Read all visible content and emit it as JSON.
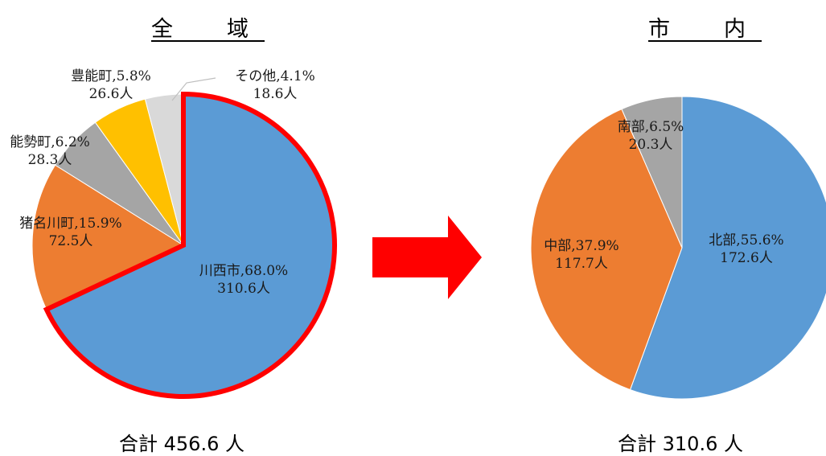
{
  "colors": {
    "blue": "#5b9bd5",
    "orange": "#ed7d31",
    "gray": "#a5a5a5",
    "yellow": "#ffc000",
    "lightgray": "#d9d9d9",
    "highlight": "#ff0000",
    "arrow": "#ff0000"
  },
  "chart_data": [
    {
      "type": "pie",
      "title": "全　域",
      "total_label": "合計 456.6 人",
      "slices": [
        {
          "name": "川西市",
          "pct_text": "68.0%",
          "count_text": "310.6人",
          "value": 310.6,
          "percent": 68.0,
          "color": "#5b9bd5"
        },
        {
          "name": "猪名川町",
          "pct_text": "15.9%",
          "count_text": "72.5人",
          "value": 72.5,
          "percent": 15.9,
          "color": "#ed7d31"
        },
        {
          "name": "能勢町",
          "pct_text": "6.2%",
          "count_text": "28.3人",
          "value": 28.3,
          "percent": 6.2,
          "color": "#a5a5a5"
        },
        {
          "name": "豊能町",
          "pct_text": "5.8%",
          "count_text": "26.6人",
          "value": 26.6,
          "percent": 5.8,
          "color": "#ffc000"
        },
        {
          "name": "その他",
          "pct_text": "4.1%",
          "count_text": "18.6人",
          "value": 18.6,
          "percent": 4.1,
          "color": "#d9d9d9"
        }
      ],
      "highlighted_slice": "川西市"
    },
    {
      "type": "pie",
      "title": "市　内",
      "total_label": "合計 310.6 人",
      "slices": [
        {
          "name": "北部",
          "pct_text": "55.6%",
          "count_text": "172.6人",
          "value": 172.6,
          "percent": 55.6,
          "color": "#5b9bd5"
        },
        {
          "name": "中部",
          "pct_text": "37.9%",
          "count_text": "117.7人",
          "value": 117.7,
          "percent": 37.9,
          "color": "#ed7d31"
        },
        {
          "name": "南部",
          "pct_text": "6.5%",
          "count_text": "20.3人",
          "value": 20.3,
          "percent": 6.5,
          "color": "#a5a5a5"
        }
      ]
    }
  ]
}
